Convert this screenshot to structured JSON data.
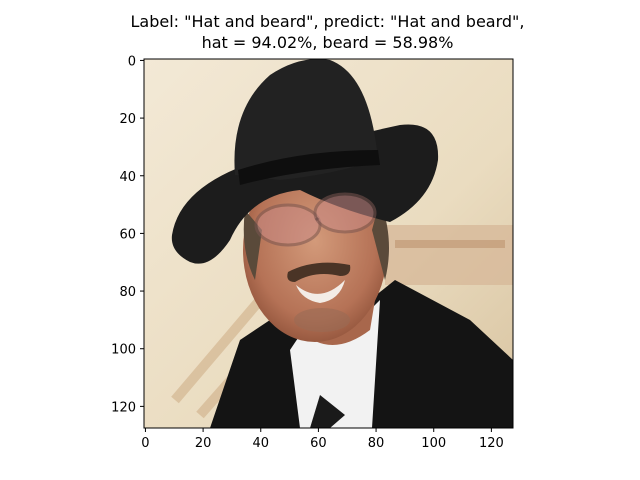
{
  "title": {
    "line1": "Label: \"Hat and beard\", predict: \"Hat and beard\",",
    "line2": "hat = 94.02%, beard = 58.98%"
  },
  "axes": {
    "x_ticks": [
      "0",
      "20",
      "40",
      "60",
      "80",
      "100",
      "120"
    ],
    "y_ticks": [
      "0",
      "20",
      "40",
      "60",
      "80",
      "100",
      "120"
    ],
    "xlim": [
      -0.5,
      127.5
    ],
    "ylim": [
      127.5,
      -0.5
    ]
  },
  "image": {
    "description_icon": "photo-icon"
  },
  "colors": {
    "background": "#efe2c8",
    "hat": "#1c1c1c",
    "jacket": "#141414",
    "skin": "#b87a5c",
    "shirt": "#f2f2f2"
  }
}
